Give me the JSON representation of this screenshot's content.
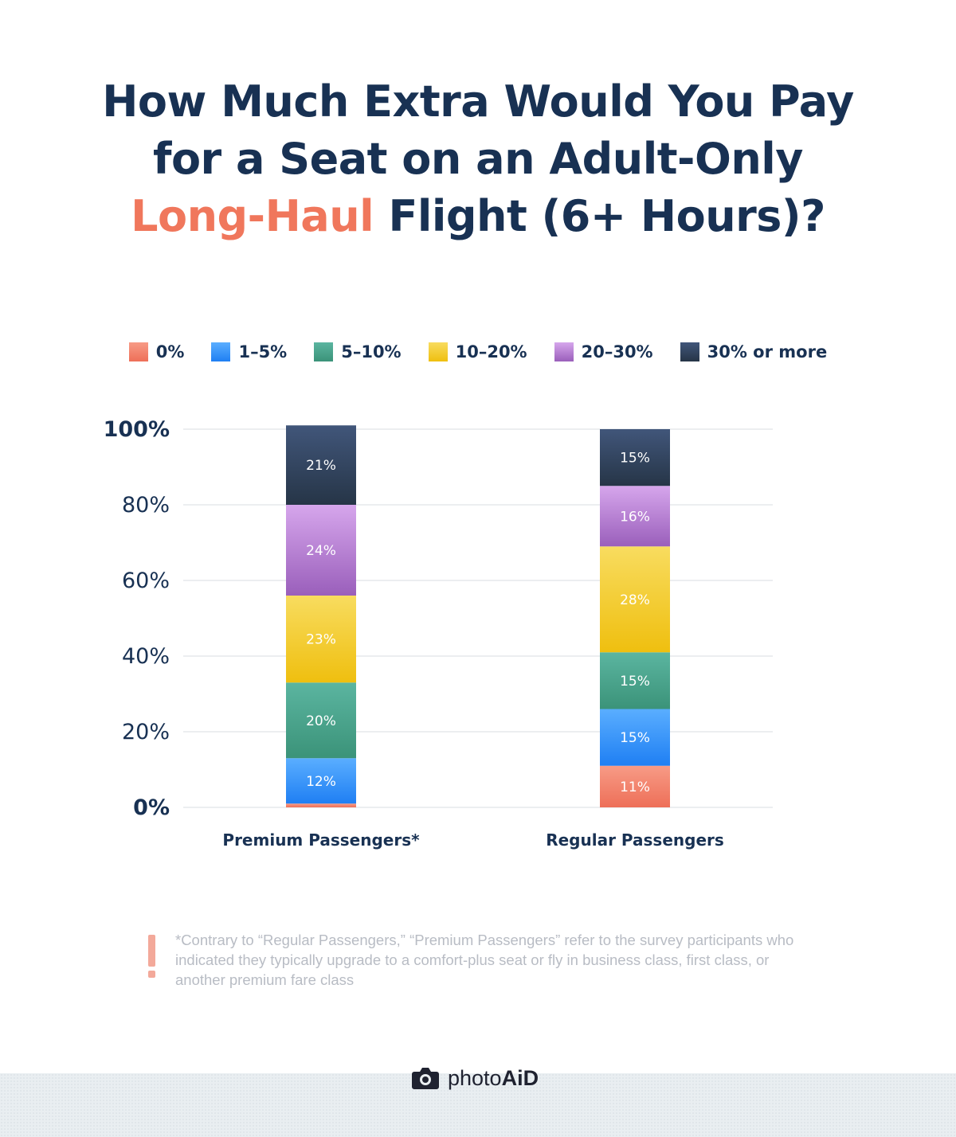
{
  "title": {
    "line1": "How Much Extra Would You Pay",
    "line2": "for a Seat on an Adult-Only",
    "line3_highlight": "Long-Haul",
    "line3_rest": " Flight (6+ Hours)?"
  },
  "colors": {
    "title": "#183153",
    "highlight": "#f0775c"
  },
  "legend": [
    {
      "label": "0%",
      "color_top": "#f79b86",
      "color_bottom": "#ee6f58"
    },
    {
      "label": "1–5%",
      "color_top": "#5aaeff",
      "color_bottom": "#1f7ff3"
    },
    {
      "label": "5–10%",
      "color_top": "#5bb5a0",
      "color_bottom": "#3b9379"
    },
    {
      "label": "10–20%",
      "color_top": "#f8dc5f",
      "color_bottom": "#efbf0f"
    },
    {
      "label": "20–30%",
      "color_top": "#d6a6ec",
      "color_bottom": "#9a5fbb"
    },
    {
      "label": "30% or more",
      "color_top": "#41567a",
      "color_bottom": "#263547"
    }
  ],
  "chart_data": {
    "type": "bar",
    "stacked": true,
    "categories": [
      "Premium Passengers*",
      "Regular Passengers"
    ],
    "series": [
      {
        "name": "0%",
        "values": [
          1,
          11
        ]
      },
      {
        "name": "1–5%",
        "values": [
          12,
          15
        ]
      },
      {
        "name": "5–10%",
        "values": [
          20,
          15
        ]
      },
      {
        "name": "10–20%",
        "values": [
          23,
          28
        ]
      },
      {
        "name": "20–30%",
        "values": [
          24,
          16
        ]
      },
      {
        "name": "30% or more",
        "values": [
          21,
          15
        ]
      }
    ],
    "data_labels": [
      [
        "",
        "12%",
        "20%",
        "23%",
        "24%",
        "21%"
      ],
      [
        "11%",
        "15%",
        "15%",
        "28%",
        "16%",
        "15%"
      ]
    ],
    "ylim": [
      0,
      100
    ],
    "y_ticks": [
      "0%",
      "20%",
      "40%",
      "60%",
      "80%",
      "100%"
    ],
    "grid": true,
    "legend_position": "top"
  },
  "footnote": "*Contrary to “Regular Passengers,” “Premium Passengers” refer to the survey participants who indicated they typically upgrade to a comfort-plus seat or fly in business class, first class, or another premium fare class",
  "brand": {
    "name_regular": "photo",
    "name_bold": "AiD",
    "icon": "camera-icon"
  }
}
